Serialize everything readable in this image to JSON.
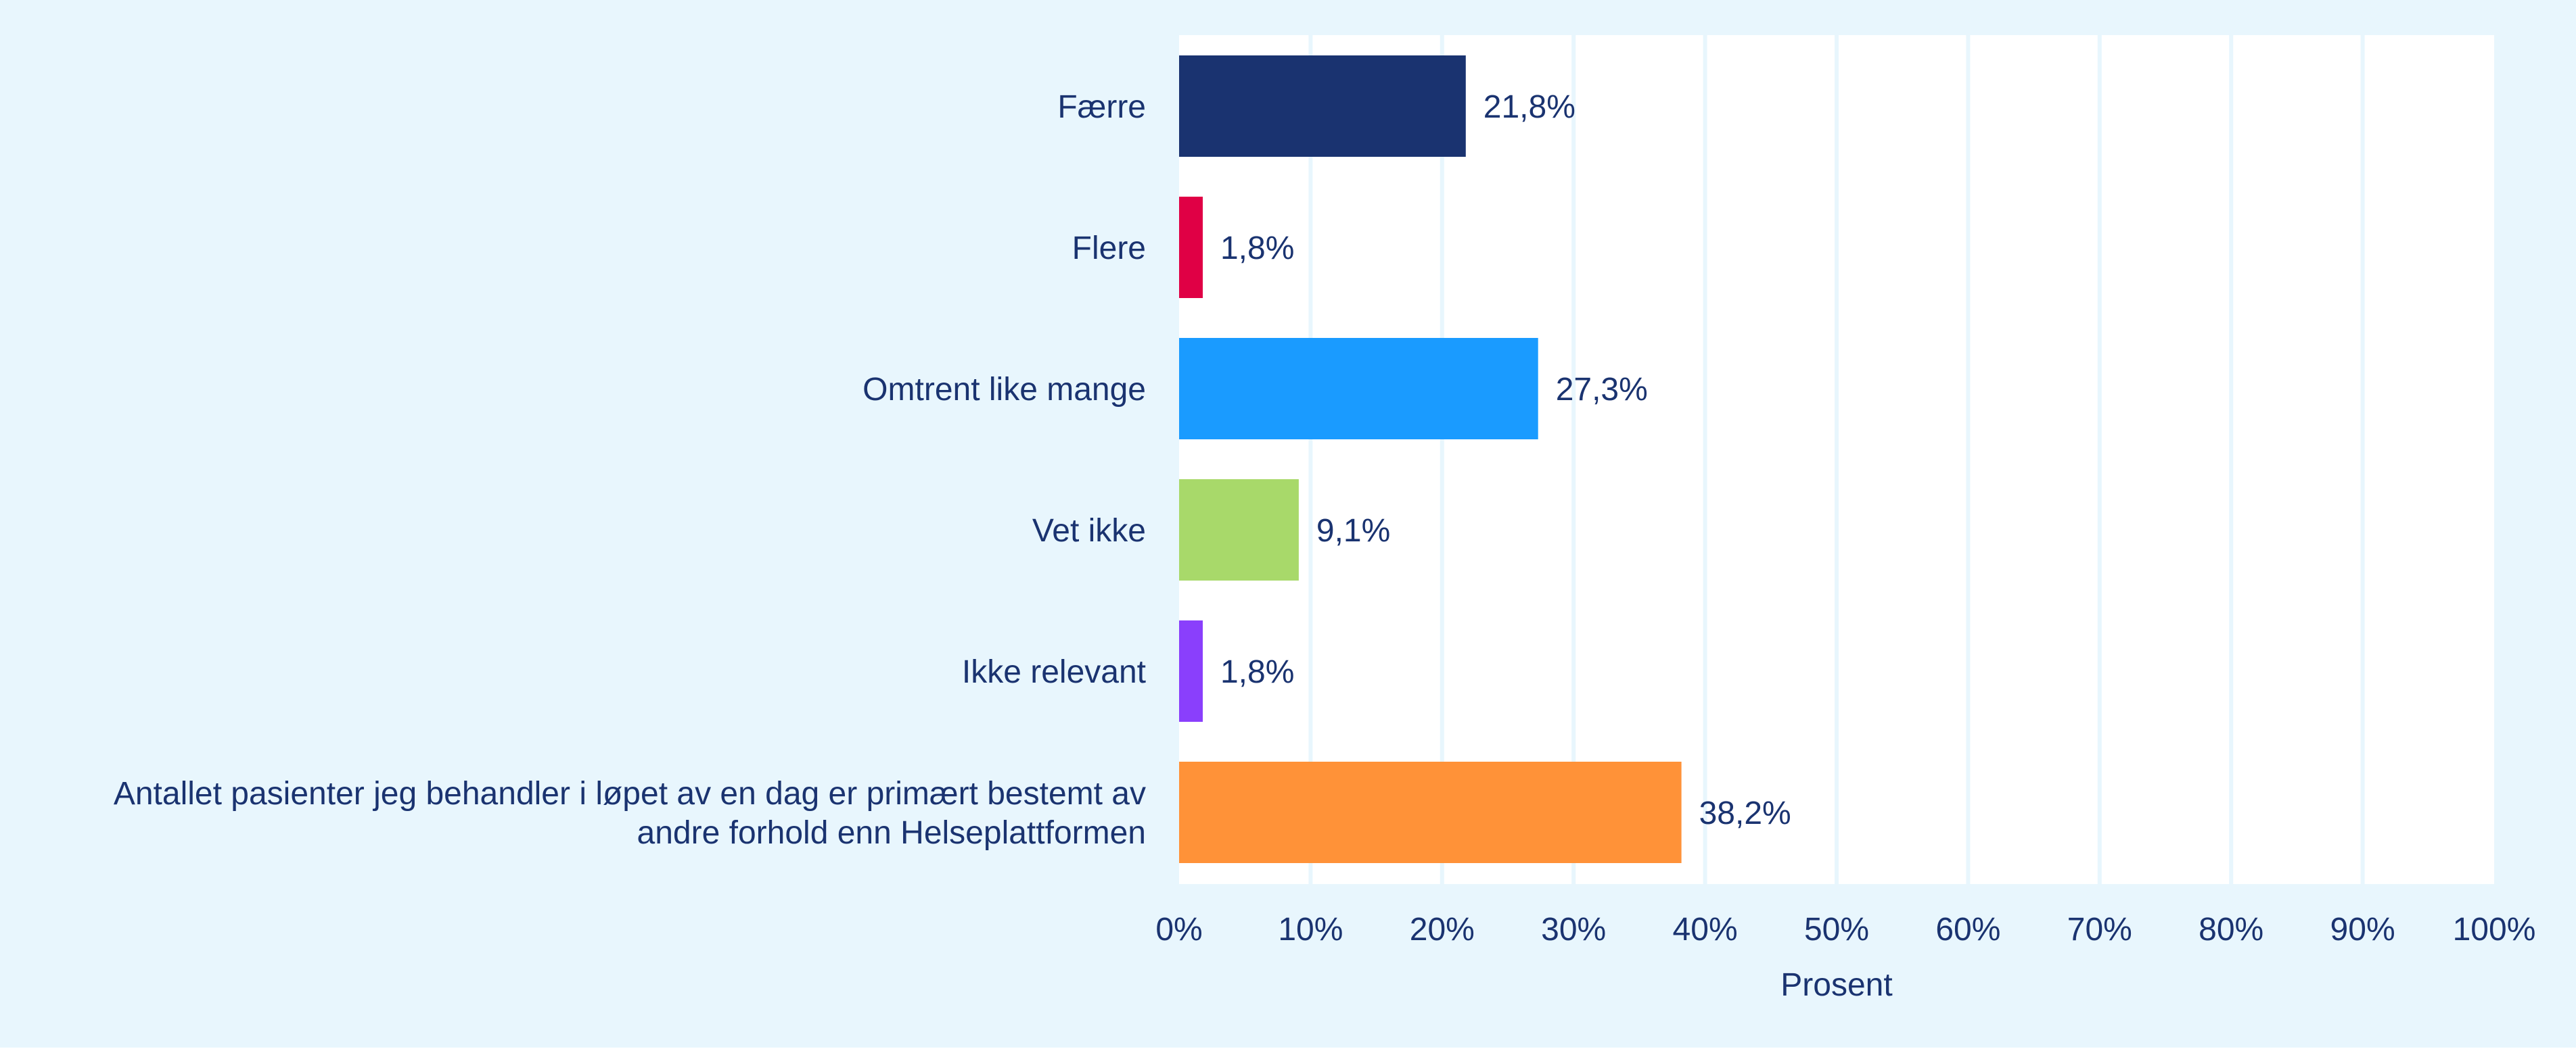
{
  "chart_data": {
    "type": "bar",
    "orientation": "horizontal",
    "categories": [
      "Færre",
      "Flere",
      "Omtrent like mange",
      "Vet ikke",
      "Ikke relevant",
      "Antallet pasienter jeg behandler i løpet av en dag er primært bestemt av andre forhold enn Helseplattformen"
    ],
    "category_lines": [
      [
        "Færre"
      ],
      [
        "Flere"
      ],
      [
        "Omtrent like mange"
      ],
      [
        "Vet ikke"
      ],
      [
        "Ikke relevant"
      ],
      [
        "Antallet pasienter jeg behandler i løpet av en dag er primært bestemt av",
        "andre forhold enn Helseplattformen"
      ]
    ],
    "values": [
      21.8,
      1.8,
      27.3,
      9.1,
      1.8,
      38.2
    ],
    "value_labels": [
      "21,8%",
      "1,8%",
      "27,3%",
      "9,1%",
      "1,8%",
      "38,2%"
    ],
    "colors": [
      "#1a3370",
      "#e00045",
      "#1a9bff",
      "#a8d96a",
      "#8a3ffc",
      "#ff9238"
    ],
    "xlabel": "Prosent",
    "ylabel": "",
    "xlim": [
      0,
      100
    ],
    "xticks": [
      "0%",
      "10%",
      "20%",
      "30%",
      "40%",
      "50%",
      "60%",
      "70%",
      "80%",
      "90%",
      "100%"
    ],
    "grid": "vertical",
    "legend": "none",
    "background": "#e8f6fd",
    "text_color": "#1a3370"
  }
}
